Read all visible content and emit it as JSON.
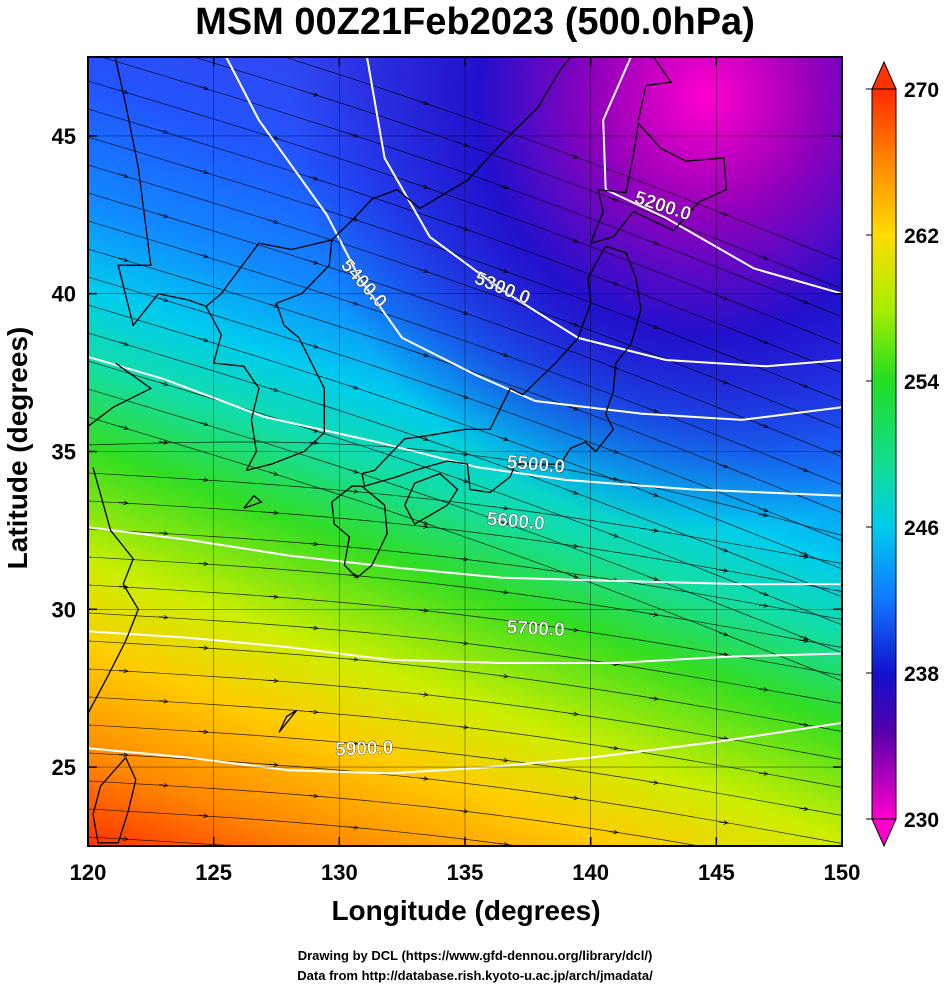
{
  "title": "MSM 00Z21Feb2023 (500.0hPa)",
  "axes": {
    "xlabel": "Longitude (degrees)",
    "ylabel": "Latitude  (degrees)",
    "xlim": [
      120,
      150
    ],
    "ylim": [
      22.5,
      47.5
    ],
    "xticks": [
      "120",
      "125",
      "130",
      "135",
      "140",
      "145",
      "150"
    ],
    "yticks": [
      "25",
      "30",
      "35",
      "40",
      "45"
    ]
  },
  "colorbar": {
    "min": 230,
    "max": 270,
    "labels": [
      "270",
      "262",
      "254",
      "246",
      "238",
      "230"
    ],
    "min_color": "#ff00cc",
    "max_color": "#ff3300"
  },
  "contours": {
    "color": "#ffffff",
    "levels": [
      "5200.0",
      "5300.0",
      "5400.0",
      "5500.0",
      "5600.0",
      "5700.0",
      "5900.0"
    ]
  },
  "credits": {
    "line1": "Drawing by DCL (https://www.gfd-dennou.org/library/dcl/)",
    "line2": "Data from http://database.rish.kyoto-u.ac.jp/arch/jmadata/"
  }
}
